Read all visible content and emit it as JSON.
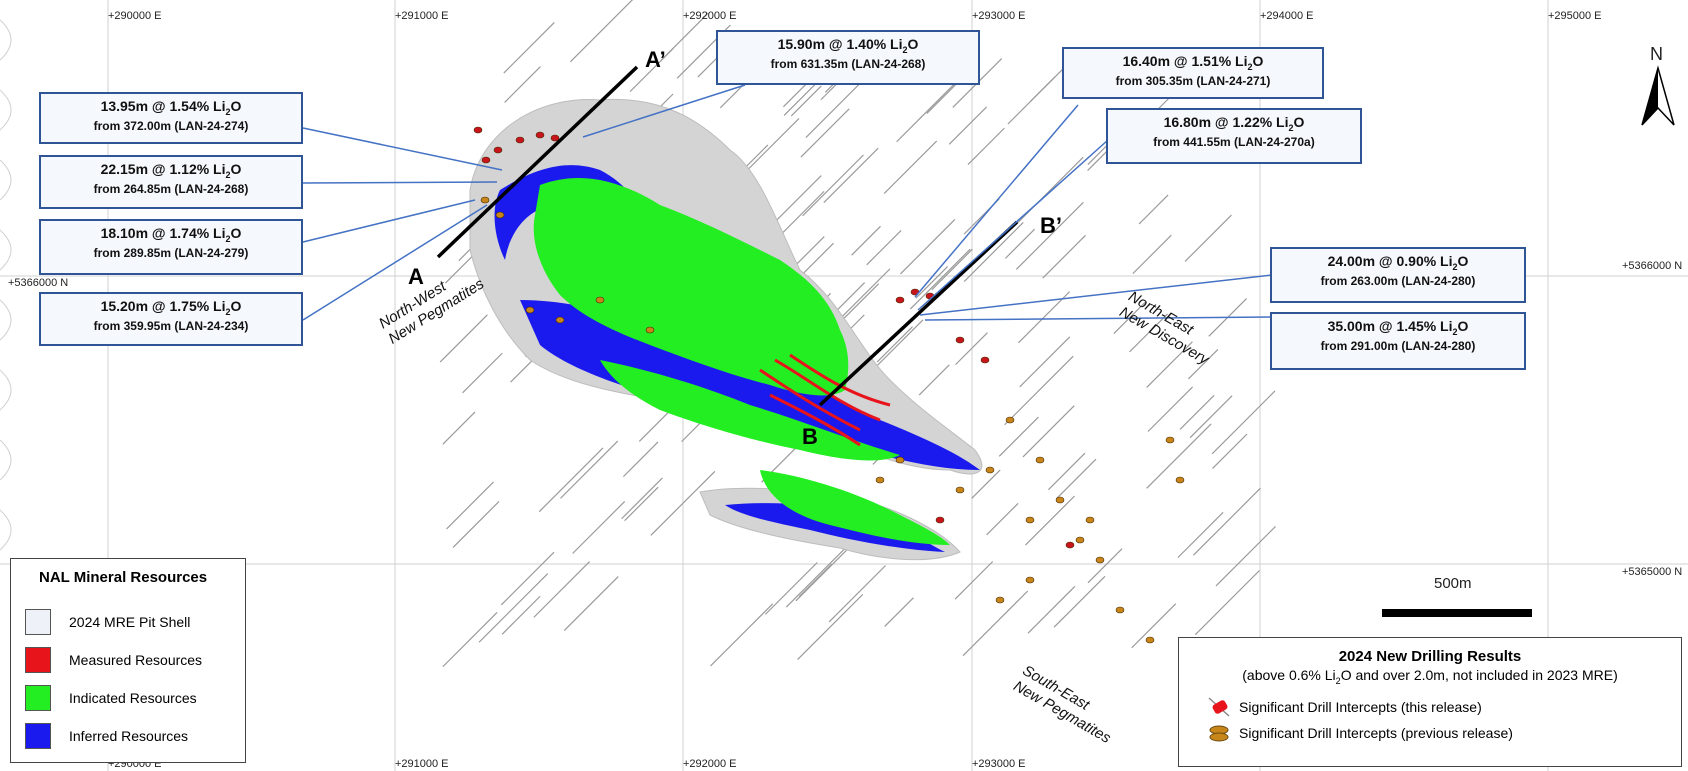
{
  "grid": {
    "x_labels_top": [
      "+290000 E",
      "+291000 E",
      "+292000 E",
      "+293000 E",
      "+294000 E",
      "+295000 E"
    ],
    "x_labels_bottom": [
      "+290000 E",
      "+291000 E",
      "+292000 E",
      "+293000 E"
    ],
    "y_labels_left": [
      "+5366000 N"
    ],
    "y_labels_right": [
      "+5366000 N",
      "+5365000 N"
    ]
  },
  "callouts": [
    {
      "line1_pre": "15.90m @ 1.40% Li",
      "line1_post": "O",
      "line2": "from 631.35m  (LAN-24-268)"
    },
    {
      "line1_pre": "16.40m @ 1.51% Li",
      "line1_post": "O",
      "line2": "from 305.35m  (LAN-24-271)"
    },
    {
      "line1_pre": "13.95m @ 1.54% Li",
      "line1_post": "O",
      "line2": "from 372.00m  (LAN-24-274)"
    },
    {
      "line1_pre": "16.80m @ 1.22% Li",
      "line1_post": "O",
      "line2": "from 441.55m  (LAN-24-270a)"
    },
    {
      "line1_pre": "22.15m @ 1.12% Li",
      "line1_post": "O",
      "line2": "from 264.85m  (LAN-24-268)"
    },
    {
      "line1_pre": "18.10m @ 1.74% Li",
      "line1_post": "O",
      "line2": "from 289.85m  (LAN-24-279)"
    },
    {
      "line1_pre": "24.00m @ 0.90% Li",
      "line1_post": "O",
      "line2": "from 263.00m  (LAN-24-280)"
    },
    {
      "line1_pre": "15.20m @ 1.75% Li",
      "line1_post": "O",
      "line2": "from 359.95m  (LAN-24-234)"
    },
    {
      "line1_pre": "35.00m @ 1.45% Li",
      "line1_post": "O",
      "line2": "from 291.00m  (LAN-24-280)"
    }
  ],
  "subscript": "2",
  "sections": {
    "a": "A",
    "a_prime": "A’",
    "b": "B",
    "b_prime": "B’"
  },
  "areas": {
    "nw": [
      "North-West",
      "New Pegmatites"
    ],
    "ne": [
      "North-East",
      "New Discovery"
    ],
    "se": [
      "South-East",
      "New Pegmatites"
    ]
  },
  "north_label": "N",
  "scale_label": "500m",
  "legend": {
    "title": "NAL Mineral Resources",
    "items": [
      {
        "label": "2024 MRE Pit Shell",
        "color": "#eef1f8"
      },
      {
        "label": "Measured Resources",
        "color": "#e8141c"
      },
      {
        "label": "Indicated Resources",
        "color": "#22ee22"
      },
      {
        "label": "Inferred Resources",
        "color": "#1a1aee"
      }
    ]
  },
  "results": {
    "title": "2024 New Drilling Results",
    "sub_pre": "(above 0.6% Li",
    "sub_post": "O and over 2.0m, not included in 2023 MRE)",
    "items": [
      {
        "label": "Significant Drill Intercepts (this release)",
        "icon": "red-intercept-icon",
        "color": "#e8141c"
      },
      {
        "label": "Significant Drill Intercepts (previous release)",
        "icon": "orange-intercept-icon",
        "color": "#c8861a"
      }
    ]
  }
}
